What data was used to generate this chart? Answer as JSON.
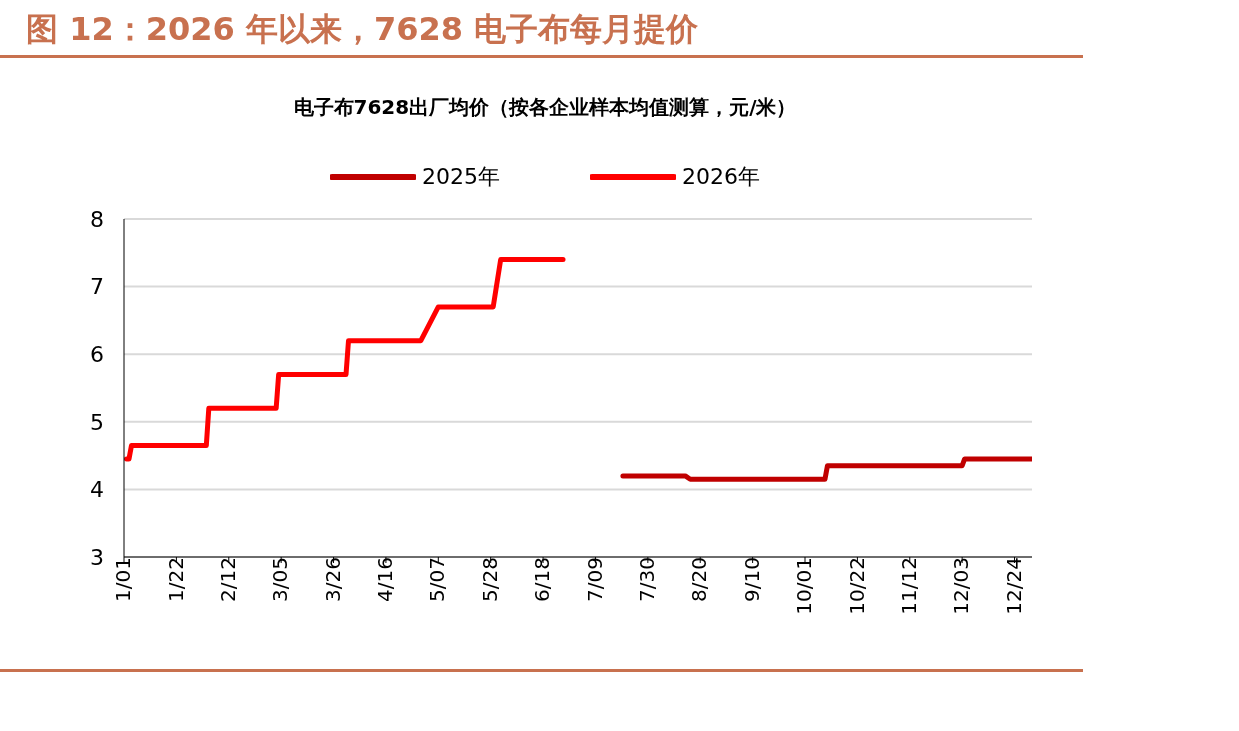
{
  "chart_data": {
    "type": "line",
    "title": "图 12：2026 年以来，7628 电子布每月提价",
    "subtitle": "电子布7628出厂均价（按各企业样本均值测算，元/米）",
    "series": [
      {
        "name": "2025年",
        "color": "#c00000",
        "x": [
          "--07-20",
          "--08-14",
          "--08-16",
          "--10-09",
          "--10-10",
          "--12-03",
          "--12-04",
          "--12-31"
        ],
        "values": [
          4.2,
          4.2,
          4.15,
          4.15,
          4.35,
          4.35,
          4.45,
          4.45
        ]
      },
      {
        "name": "2026年",
        "color": "#ff0000",
        "x": [
          "--01-02",
          "--01-03",
          "--01-04",
          "--02-03",
          "--02-04",
          "--03-03",
          "--03-04",
          "--03-31",
          "--04-01",
          "--04-30",
          "--05-07",
          "--05-29",
          "--06-01",
          "--06-26"
        ],
        "values": [
          4.45,
          4.45,
          4.65,
          4.65,
          5.2,
          5.2,
          5.7,
          5.7,
          6.2,
          6.2,
          6.7,
          6.7,
          7.4,
          7.4
        ]
      }
    ],
    "xlim": [
      "--01-01",
      "--12-31"
    ],
    "xticks": [
      {
        "value": "--01-01",
        "label": "1/01"
      },
      {
        "value": "--01-22",
        "label": "1/22"
      },
      {
        "value": "--02-12",
        "label": "2/12"
      },
      {
        "value": "--03-05",
        "label": "3/05"
      },
      {
        "value": "--03-26",
        "label": "3/26"
      },
      {
        "value": "--04-16",
        "label": "4/16"
      },
      {
        "value": "--05-07",
        "label": "5/07"
      },
      {
        "value": "--05-28",
        "label": "5/28"
      },
      {
        "value": "--06-18",
        "label": "6/18"
      },
      {
        "value": "--07-09",
        "label": "7/09"
      },
      {
        "value": "--07-30",
        "label": "7/30"
      },
      {
        "value": "--08-20",
        "label": "8/20"
      },
      {
        "value": "--09-10",
        "label": "9/10"
      },
      {
        "value": "--10-01",
        "label": "10/01"
      },
      {
        "value": "--10-22",
        "label": "10/22"
      },
      {
        "value": "--11-12",
        "label": "11/12"
      },
      {
        "value": "--12-03",
        "label": "12/03"
      },
      {
        "value": "--12-24",
        "label": "12/24"
      }
    ],
    "ylim": [
      3,
      8
    ],
    "yticks": [
      3,
      4,
      5,
      6,
      7,
      8
    ],
    "grid": "y",
    "legend": "top",
    "marker": "none",
    "line_style": "solid"
  }
}
